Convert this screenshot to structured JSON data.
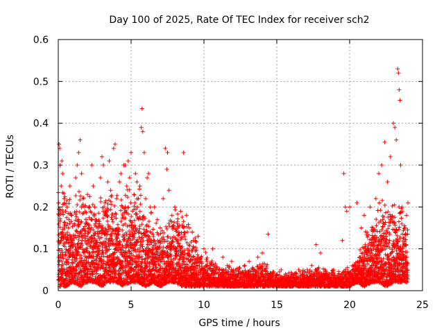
{
  "chart_data": {
    "type": "scatter",
    "title": "Day 100 of 2025, Rate Of TEC Index for receiver sch2",
    "xlabel": "GPS time / hours",
    "ylabel": "ROTI / TECUs",
    "xlim": [
      0,
      25
    ],
    "ylim": [
      0,
      0.6
    ],
    "xticks": [
      0,
      5,
      10,
      15,
      20,
      25
    ],
    "xtick_labels": [
      "0",
      "5",
      "10",
      "15",
      "20",
      "25"
    ],
    "yticks": [
      0,
      0.1,
      0.2,
      0.3,
      0.4,
      0.5,
      0.6
    ],
    "ytick_labels": [
      "0",
      "0.1",
      "0.2",
      "0.3",
      "0.4",
      "0.5",
      "0.6"
    ],
    "grid": true,
    "marker": "+",
    "color": "#ff0000",
    "series": [
      {
        "name": "ROTI",
        "points": [
          [
            0.05,
            0.35
          ],
          [
            0.1,
            0.34
          ],
          [
            0.12,
            0.3
          ],
          [
            0.2,
            0.25
          ],
          [
            0.25,
            0.31
          ],
          [
            0.3,
            0.28
          ],
          [
            0.4,
            0.22
          ],
          [
            0.5,
            0.19
          ],
          [
            0.6,
            0.2
          ],
          [
            0.7,
            0.15
          ],
          [
            0.8,
            0.25
          ],
          [
            0.9,
            0.18
          ],
          [
            1.0,
            0.12
          ],
          [
            1.1,
            0.16
          ],
          [
            1.2,
            0.27
          ],
          [
            1.3,
            0.3
          ],
          [
            1.4,
            0.33
          ],
          [
            1.5,
            0.36
          ],
          [
            1.6,
            0.28
          ],
          [
            1.7,
            0.22
          ],
          [
            1.8,
            0.2
          ],
          [
            1.9,
            0.17
          ],
          [
            2.0,
            0.23
          ],
          [
            2.1,
            0.14
          ],
          [
            2.2,
            0.19
          ],
          [
            2.3,
            0.3
          ],
          [
            2.4,
            0.25
          ],
          [
            2.5,
            0.2
          ],
          [
            2.6,
            0.12
          ],
          [
            2.7,
            0.1
          ],
          [
            2.8,
            0.16
          ],
          [
            2.9,
            0.27
          ],
          [
            3.0,
            0.32
          ],
          [
            3.1,
            0.3
          ],
          [
            3.2,
            0.21
          ],
          [
            3.3,
            0.18
          ],
          [
            3.4,
            0.26
          ],
          [
            3.5,
            0.31
          ],
          [
            3.6,
            0.24
          ],
          [
            3.7,
            0.17
          ],
          [
            3.8,
            0.34
          ],
          [
            3.9,
            0.35
          ],
          [
            4.0,
            0.22
          ],
          [
            4.1,
            0.15
          ],
          [
            4.2,
            0.26
          ],
          [
            4.3,
            0.28
          ],
          [
            4.4,
            0.2
          ],
          [
            4.5,
            0.3
          ],
          [
            4.6,
            0.3
          ],
          [
            4.7,
            0.25
          ],
          [
            4.8,
            0.31
          ],
          [
            4.9,
            0.27
          ],
          [
            5.0,
            0.33
          ],
          [
            5.1,
            0.19
          ],
          [
            5.2,
            0.23
          ],
          [
            5.3,
            0.28
          ],
          [
            5.4,
            0.26
          ],
          [
            5.5,
            0.22
          ],
          [
            5.6,
            0.25
          ],
          [
            5.7,
            0.39
          ],
          [
            5.75,
            0.435
          ],
          [
            5.8,
            0.38
          ],
          [
            5.9,
            0.33
          ],
          [
            6.0,
            0.22
          ],
          [
            6.1,
            0.27
          ],
          [
            6.2,
            0.28
          ],
          [
            6.3,
            0.2
          ],
          [
            6.4,
            0.12
          ],
          [
            6.5,
            0.1
          ],
          [
            6.6,
            0.2
          ],
          [
            6.8,
            0.17
          ],
          [
            7.0,
            0.15
          ],
          [
            7.2,
            0.22
          ],
          [
            7.35,
            0.34
          ],
          [
            7.45,
            0.29
          ],
          [
            7.5,
            0.33
          ],
          [
            7.6,
            0.24
          ],
          [
            7.8,
            0.18
          ],
          [
            8.0,
            0.2
          ],
          [
            8.2,
            0.15
          ],
          [
            8.4,
            0.19
          ],
          [
            8.6,
            0.33
          ],
          [
            8.8,
            0.18
          ],
          [
            9.0,
            0.15
          ],
          [
            9.2,
            0.14
          ],
          [
            9.4,
            0.12
          ],
          [
            9.6,
            0.13
          ],
          [
            9.8,
            0.08
          ],
          [
            10.0,
            0.1
          ],
          [
            10.2,
            0.06
          ],
          [
            10.4,
            0.03
          ],
          [
            10.6,
            0.1
          ],
          [
            10.8,
            0.05
          ],
          [
            11.0,
            0.04
          ],
          [
            11.3,
            0.08
          ],
          [
            11.6,
            0.06
          ],
          [
            11.9,
            0.07
          ],
          [
            12.2,
            0.05
          ],
          [
            12.5,
            0.04
          ],
          [
            12.8,
            0.06
          ],
          [
            13.1,
            0.07
          ],
          [
            13.4,
            0.05
          ],
          [
            13.7,
            0.08
          ],
          [
            14.0,
            0.09
          ],
          [
            14.2,
            0.05
          ],
          [
            14.4,
            0.135
          ],
          [
            14.7,
            0.04
          ],
          [
            15.0,
            0.03
          ],
          [
            15.3,
            0.05
          ],
          [
            15.6,
            0.04
          ],
          [
            15.9,
            0.03
          ],
          [
            16.2,
            0.04
          ],
          [
            16.5,
            0.05
          ],
          [
            16.8,
            0.04
          ],
          [
            17.1,
            0.05
          ],
          [
            17.4,
            0.06
          ],
          [
            17.7,
            0.11
          ],
          [
            18.0,
            0.09
          ],
          [
            18.3,
            0.05
          ],
          [
            18.6,
            0.04
          ],
          [
            18.9,
            0.05
          ],
          [
            19.2,
            0.03
          ],
          [
            19.5,
            0.12
          ],
          [
            19.6,
            0.28
          ],
          [
            19.7,
            0.2
          ],
          [
            19.8,
            0.19
          ],
          [
            20.0,
            0.2
          ],
          [
            20.2,
            0.06
          ],
          [
            20.5,
            0.21
          ],
          [
            20.6,
            0.05
          ],
          [
            20.8,
            0.15
          ],
          [
            21.0,
            0.18
          ],
          [
            21.2,
            0.1
          ],
          [
            21.4,
            0.2
          ],
          [
            21.6,
            0.15
          ],
          [
            21.8,
            0.22
          ],
          [
            22.0,
            0.28
          ],
          [
            22.2,
            0.3
          ],
          [
            22.4,
            0.355
          ],
          [
            22.6,
            0.26
          ],
          [
            22.8,
            0.32
          ],
          [
            23.0,
            0.4
          ],
          [
            23.1,
            0.39
          ],
          [
            23.2,
            0.36
          ],
          [
            23.3,
            0.53
          ],
          [
            23.35,
            0.52
          ],
          [
            23.4,
            0.48
          ],
          [
            23.45,
            0.455
          ],
          [
            23.5,
            0.3
          ],
          [
            23.6,
            0.2
          ],
          [
            23.8,
            0.15
          ],
          [
            23.9,
            0.18
          ],
          [
            24.0,
            0.21
          ]
        ]
      }
    ],
    "envelope": {
      "x": [
        0,
        0.5,
        1,
        1.5,
        2,
        2.5,
        3,
        3.5,
        4,
        4.5,
        5,
        5.5,
        6,
        6.5,
        7,
        7.5,
        8,
        8.5,
        9,
        9.5,
        10,
        11,
        12,
        13,
        14,
        15,
        16,
        17,
        18,
        19,
        19.5,
        20,
        20.5,
        21,
        21.5,
        22,
        22.5,
        23,
        23.5,
        24
      ],
      "upper": [
        0.22,
        0.2,
        0.17,
        0.22,
        0.2,
        0.18,
        0.2,
        0.19,
        0.21,
        0.2,
        0.22,
        0.2,
        0.18,
        0.15,
        0.12,
        0.15,
        0.17,
        0.16,
        0.13,
        0.1,
        0.08,
        0.05,
        0.05,
        0.05,
        0.06,
        0.04,
        0.04,
        0.04,
        0.05,
        0.04,
        0.04,
        0.05,
        0.07,
        0.12,
        0.14,
        0.17,
        0.18,
        0.2,
        0.18,
        0.12
      ],
      "lower": [
        0.01,
        0.01,
        0.02,
        0.01,
        0.02,
        0.02,
        0.01,
        0.02,
        0.02,
        0.01,
        0.02,
        0.02,
        0.01,
        0.02,
        0.01,
        0.02,
        0.02,
        0.01,
        0.01,
        0.01,
        0.01,
        0.01,
        0.01,
        0.01,
        0.01,
        0.01,
        0.01,
        0.01,
        0.01,
        0.01,
        0.01,
        0.01,
        0.02,
        0.01,
        0.02,
        0.02,
        0.01,
        0.02,
        0.02,
        0.02
      ]
    }
  }
}
